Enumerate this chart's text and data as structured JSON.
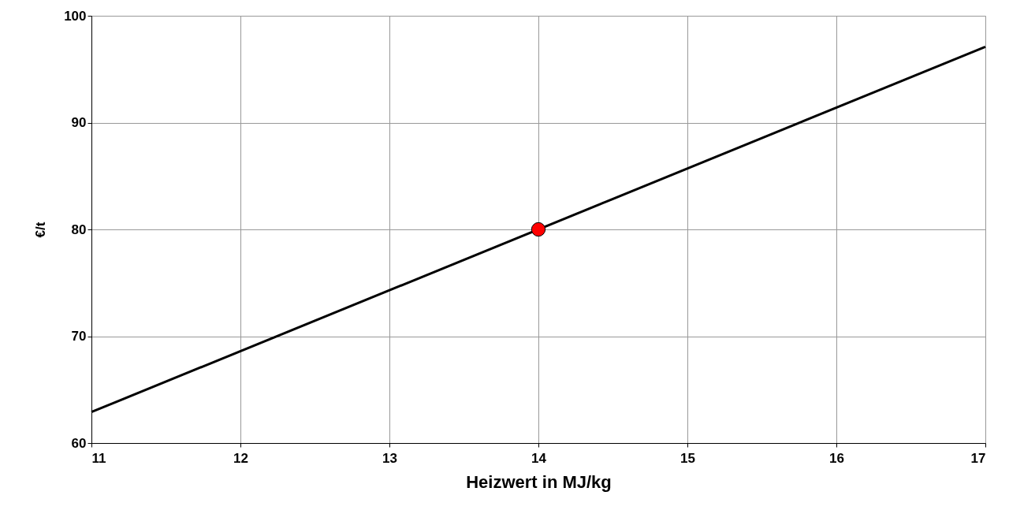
{
  "chart_data": {
    "type": "line",
    "xlabel": "Heizwert in MJ/kg",
    "ylabel": "€/t",
    "xlim": [
      11,
      17
    ],
    "ylim": [
      60,
      100
    ],
    "xticks": [
      11,
      12,
      13,
      14,
      15,
      16,
      17
    ],
    "yticks": [
      60,
      70,
      80,
      90,
      100
    ],
    "grid": true,
    "series": [
      {
        "color": "#000000",
        "x": [
          11,
          17
        ],
        "values": [
          62.9,
          97.1
        ],
        "marker": "none"
      },
      {
        "type": "scatter",
        "color": "#ff0000",
        "x": [
          14
        ],
        "values": [
          80
        ],
        "marker": "circle"
      }
    ]
  }
}
